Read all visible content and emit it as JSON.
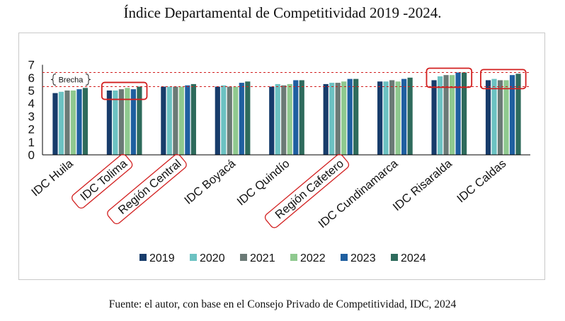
{
  "title": "Índice Departamental de Competitividad 2019 -2024.",
  "source": "Fuente: el autor, con base en el Consejo Privado de Competitividad, IDC, 2024",
  "annotations": {
    "gap_label": "Brecha"
  },
  "colors": {
    "series": [
      "#173c6b",
      "#6cc2c2",
      "#6b7a76",
      "#8fc98f",
      "#1f5fa0",
      "#2e6b5c"
    ],
    "highlight": "#d21f1f",
    "axis": "#000000"
  },
  "chart_data": {
    "type": "bar",
    "categories": [
      "IDC Huila",
      "IDC Tolima",
      "Región Central",
      "IDC Boyacá",
      "IDC Quindío",
      "Región Cafetero",
      "IDC Cundinamarca",
      "IDC Risaralda",
      "IDC Caldas"
    ],
    "series": [
      {
        "name": "2019",
        "values": [
          4.8,
          5.0,
          5.3,
          5.3,
          5.3,
          5.5,
          5.7,
          5.8,
          5.8
        ]
      },
      {
        "name": "2020",
        "values": [
          4.9,
          5.0,
          5.3,
          5.4,
          5.5,
          5.6,
          5.7,
          6.1,
          5.9
        ]
      },
      {
        "name": "2021",
        "values": [
          5.0,
          5.1,
          5.3,
          5.3,
          5.4,
          5.6,
          5.8,
          6.2,
          5.8
        ]
      },
      {
        "name": "2022",
        "values": [
          5.0,
          5.2,
          5.3,
          5.3,
          5.5,
          5.7,
          5.7,
          6.2,
          5.8
        ]
      },
      {
        "name": "2023",
        "values": [
          5.1,
          5.1,
          5.4,
          5.6,
          5.8,
          5.9,
          5.9,
          6.4,
          6.2
        ]
      },
      {
        "name": "2024",
        "values": [
          5.2,
          5.3,
          5.5,
          5.7,
          5.8,
          5.9,
          6.0,
          6.4,
          6.3
        ]
      }
    ],
    "ylim": [
      0,
      7
    ],
    "yticks": [
      "0",
      "1",
      "2",
      "3",
      "4",
      "5",
      "6",
      "7"
    ],
    "reference_lines": [
      5.3,
      6.4
    ],
    "highlighted_label_categories": [
      "IDC Tolima",
      "Región Central",
      "Región Cafetero"
    ],
    "highlighted_bar_groups": [
      "IDC Tolima",
      "IDC Risaralda",
      "IDC Caldas"
    ],
    "legend_position": "bottom",
    "grid": false
  }
}
